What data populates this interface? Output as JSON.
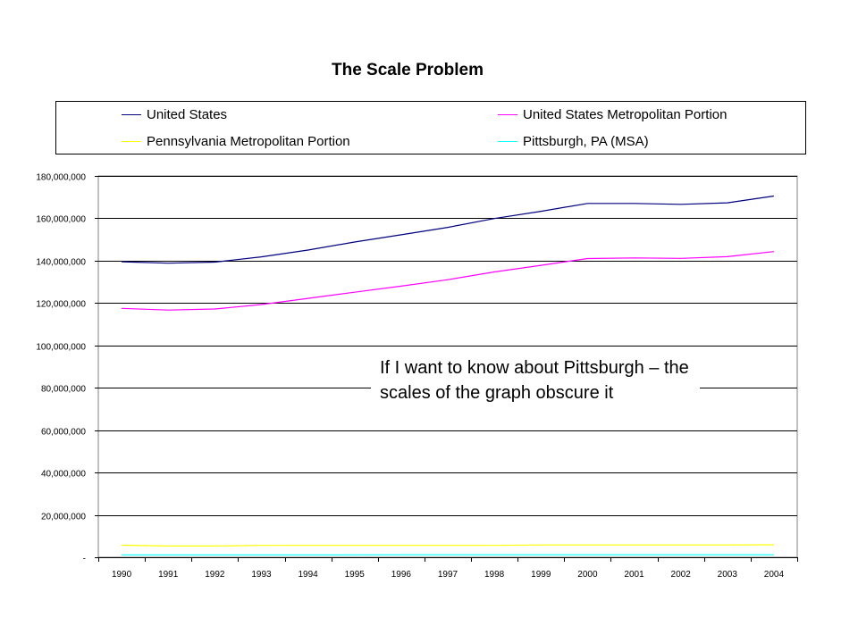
{
  "chart_data": {
    "type": "line",
    "title": "The Scale Problem",
    "xlabel": "",
    "ylabel": "",
    "categories": [
      "1990",
      "1991",
      "1992",
      "1993",
      "1994",
      "1995",
      "1996",
      "1997",
      "1998",
      "1999",
      "2000",
      "2001",
      "2002",
      "2003",
      "2004"
    ],
    "ylim": [
      0,
      180000000
    ],
    "yticks": [
      0,
      20000000,
      40000000,
      60000000,
      80000000,
      100000000,
      120000000,
      140000000,
      160000000,
      180000000
    ],
    "ytick_labels": [
      "-",
      "20,000,000",
      "40,000,000",
      "60,000,000",
      "80,000,000",
      "100,000,000",
      "120,000,000",
      "140,000,000",
      "160,000,000",
      "180,000,000"
    ],
    "grid": true,
    "legend_position": "top",
    "series": [
      {
        "name": "United States",
        "color": "#000080",
        "values": [
          139500000,
          138800000,
          139300000,
          141800000,
          145000000,
          148800000,
          152200000,
          155700000,
          159900000,
          163300000,
          167000000,
          167000000,
          166600000,
          167300000,
          170500000
        ]
      },
      {
        "name": "United States Metropolitan Portion",
        "color": "#ff00ff",
        "values": [
          117500000,
          116700000,
          117200000,
          119300000,
          122200000,
          125100000,
          128000000,
          131000000,
          134700000,
          137800000,
          141000000,
          141300000,
          141100000,
          141900000,
          144300000
        ]
      },
      {
        "name": "Pennsylvania Metropolitan Portion",
        "color": "#ffff00",
        "values": [
          5700000,
          5300000,
          5300000,
          5600000,
          5600000,
          5600000,
          5600000,
          5600000,
          5600000,
          5800000,
          5800000,
          5800000,
          5800000,
          5800000,
          5900000
        ]
      },
      {
        "name": "Pittsburgh, PA (MSA)",
        "color": "#00ffff",
        "values": [
          1150000,
          1120000,
          1130000,
          1140000,
          1150000,
          1150000,
          1160000,
          1160000,
          1170000,
          1180000,
          1190000,
          1190000,
          1180000,
          1180000,
          1200000
        ]
      }
    ],
    "annotation": "If I want to know about Pittsburgh – the scales of the graph obscure it"
  }
}
